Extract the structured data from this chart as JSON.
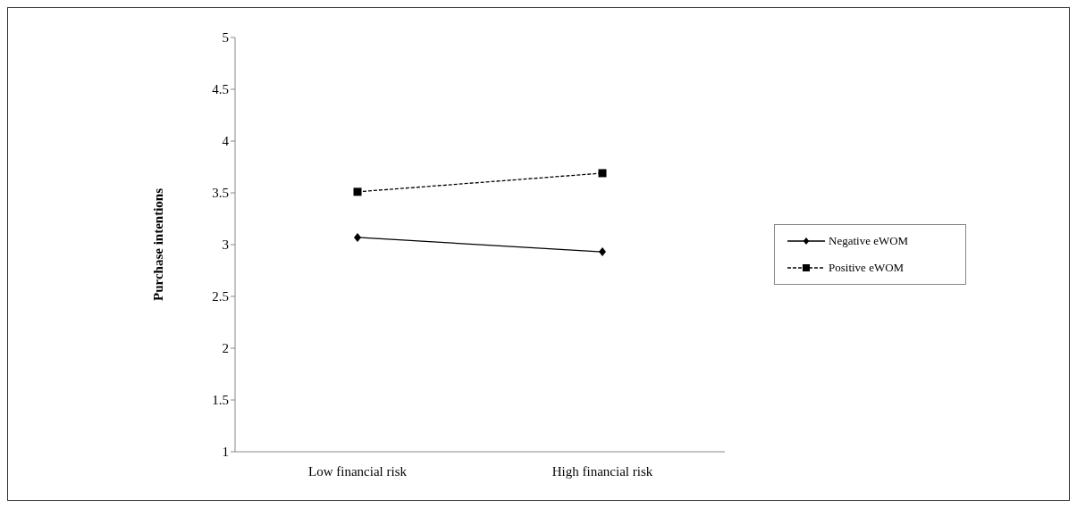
{
  "chart_data": {
    "type": "line",
    "ylabel": "Purchase intentions",
    "categories": [
      "Low financial risk",
      "High financial risk"
    ],
    "series": [
      {
        "name": "Negative eWOM",
        "color": "#000000",
        "values": [
          3.07,
          2.93
        ],
        "marker": "diamond",
        "line_style": "solid"
      },
      {
        "name": "Positive eWOM",
        "color": "#000000",
        "values": [
          3.51,
          3.69
        ],
        "marker": "square",
        "line_style": "dashed"
      }
    ],
    "ylim": [
      1,
      5
    ],
    "yticks": [
      1,
      1.5,
      2,
      2.5,
      3,
      3.5,
      4,
      4.5,
      5
    ],
    "grid": false,
    "legend": "right"
  }
}
